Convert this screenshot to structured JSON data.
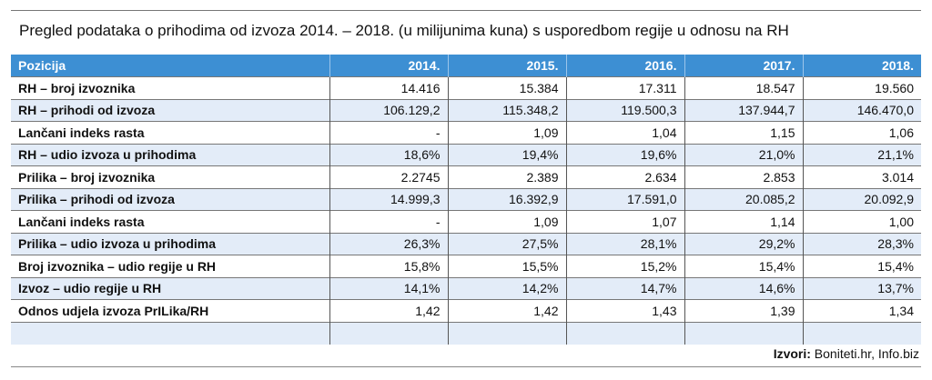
{
  "title": "Pregled podataka o prihodima od izvoza 2014. – 2018. (u milijunima kuna) s usporedbom regije u odnosu na RH",
  "table": {
    "headers": [
      "Pozicija",
      "2014.",
      "2015.",
      "2016.",
      "2017.",
      "2018."
    ],
    "rows": [
      [
        "RH – broj izvoznika",
        "14.416",
        "15.384",
        "17.311",
        "18.547",
        "19.560"
      ],
      [
        "RH – prihodi od izvoza",
        "106.129,2",
        "115.348,2",
        "119.500,3",
        "137.944,7",
        "146.470,0"
      ],
      [
        "Lančani indeks rasta",
        "-",
        "1,09",
        "1,04",
        "1,15",
        "1,06"
      ],
      [
        "RH – udio izvoza u prihodima",
        "18,6%",
        "19,4%",
        "19,6%",
        "21,0%",
        "21,1%"
      ],
      [
        "Prilika – broj izvoznika",
        "2.2745",
        "2.389",
        "2.634",
        "2.853",
        "3.014"
      ],
      [
        "Prilika – prihodi od izvoza",
        "14.999,3",
        "16.392,9",
        "17.591,0",
        "20.085,2",
        "20.092,9"
      ],
      [
        "Lančani indeks rasta",
        "-",
        "1,09",
        "1,07",
        "1,14",
        "1,00"
      ],
      [
        "Prilika – udio izvoza u prihodima",
        "26,3%",
        "27,5%",
        "28,1%",
        "29,2%",
        "28,3%"
      ],
      [
        "Broj izvoznika – udio regije u RH",
        "15,8%",
        "15,5%",
        "15,2%",
        "15,4%",
        "15,4%"
      ],
      [
        "Izvoz – udio regije u RH",
        "14,1%",
        "14,2%",
        "14,7%",
        "14,6%",
        "13,7%"
      ],
      [
        "Odnos udjela izvoza PrILika/RH",
        "1,42",
        "1,42",
        "1,43",
        "1,39",
        "1,34"
      ]
    ]
  },
  "source": {
    "label": "Izvori:",
    "text": " Boniteti.hr, Info.biz"
  },
  "colors": {
    "header_bg": "#3d8fd3",
    "alt_row_bg": "#e3ecf8"
  }
}
